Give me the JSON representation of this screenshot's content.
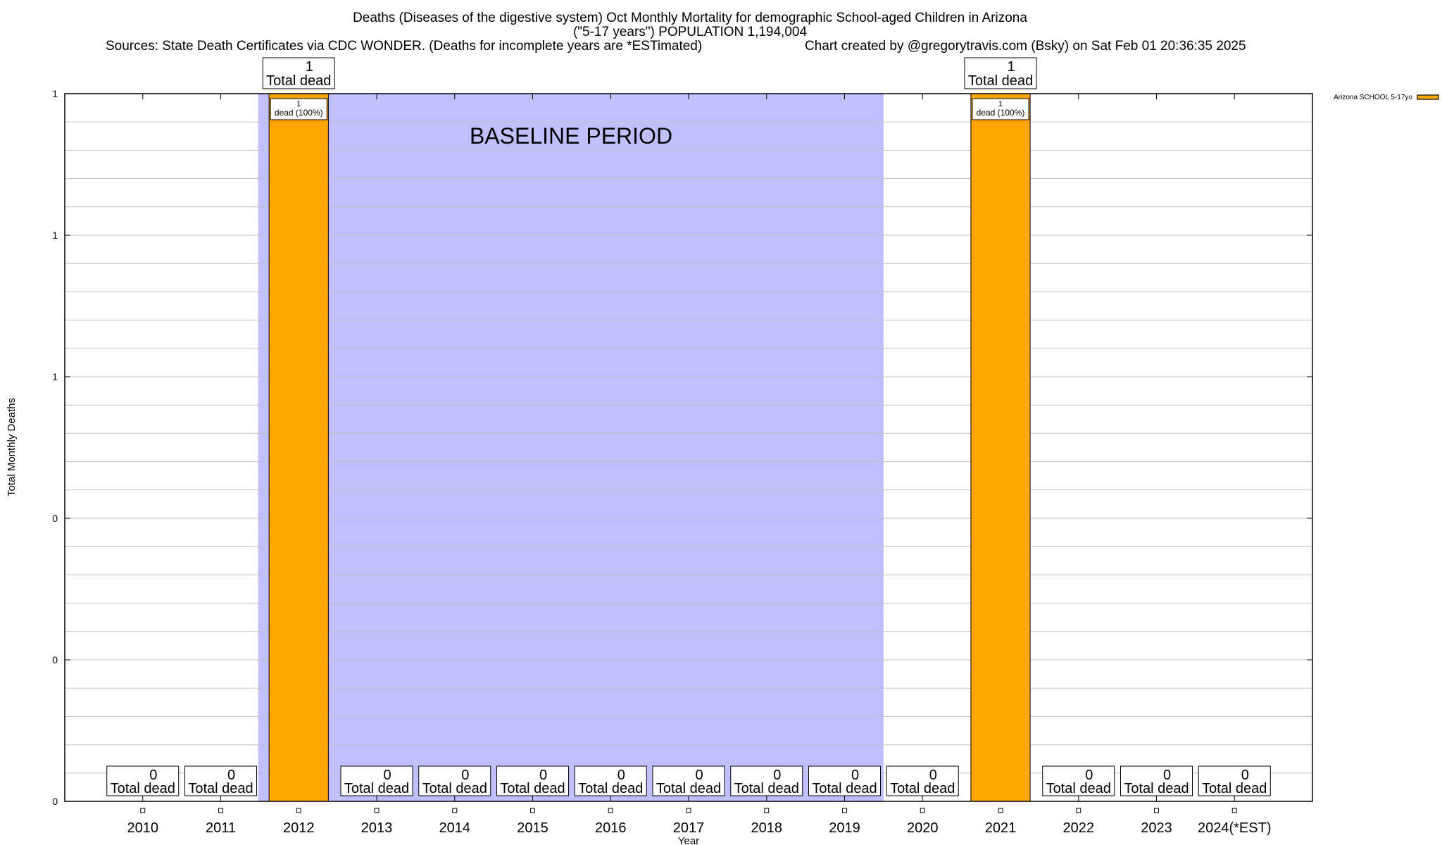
{
  "chart_data": {
    "type": "bar",
    "title_lines": [
      "Deaths (Diseases of the digestive system) Oct Monthly Mortality for demographic School-aged Children in Arizona",
      "(\"5-17 years\") POPULATION 1,194,004"
    ],
    "source_text": "Sources: State Death Certificates via CDC WONDER. (Deaths for incomplete years are *ESTimated)",
    "credit_text": "Chart created by @gregorytravis.com (Bsky) on Sat Feb 01 20:36:35 2025",
    "xlabel": "Year",
    "ylabel": "Total Monthly Deaths",
    "ylim": [
      0,
      1
    ],
    "y_ticks": [
      0,
      0.2,
      0.4,
      0.6,
      0.8,
      1
    ],
    "y_tick_labels": [
      "0",
      "0",
      "0",
      "1",
      "1",
      "1"
    ],
    "grid": true,
    "categories": [
      "2010",
      "2011",
      "2012",
      "2013",
      "2014",
      "2015",
      "2016",
      "2017",
      "2018",
      "2019",
      "2020",
      "2021",
      "2022",
      "2023",
      "2024(*EST)"
    ],
    "series": [
      {
        "name": "Arizona SCHOOL 5-17yo",
        "color": "#ffa500",
        "values": [
          0,
          0,
          1,
          0,
          0,
          0,
          0,
          0,
          0,
          0,
          0,
          1,
          0,
          0,
          0
        ]
      }
    ],
    "total_label_suffix": "Total dead",
    "inner_label_suffix": "dead (100%)",
    "legend_position": "top-right-outside",
    "annotation": {
      "text": "BASELINE PERIOD",
      "from_category": "2012",
      "to_category": "2019",
      "color": "#c0c0ff"
    }
  }
}
